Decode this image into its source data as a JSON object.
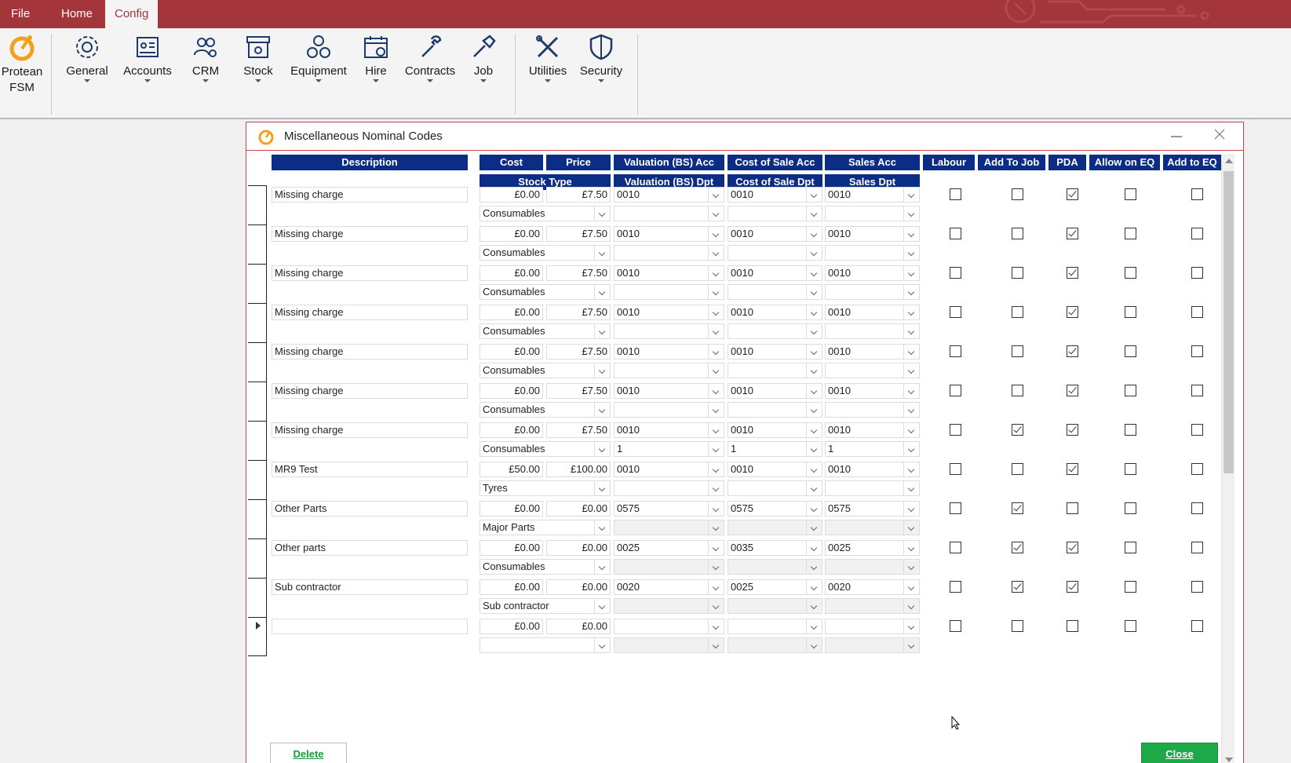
{
  "menu": {
    "tabs": [
      {
        "label": "File"
      },
      {
        "label": "Home"
      },
      {
        "label": "Config"
      }
    ]
  },
  "ribbon": {
    "buttons": [
      {
        "label": "Protean\nFSM",
        "icon": "protean-logo-icon"
      },
      {
        "label": "General",
        "icon": "gear-icon"
      },
      {
        "label": "Accounts",
        "icon": "contact-card-icon"
      },
      {
        "label": "CRM",
        "icon": "users-gear-icon"
      },
      {
        "label": "Stock",
        "icon": "stock-box-icon"
      },
      {
        "label": "Equipment",
        "icon": "gears-icon"
      },
      {
        "label": "Hire",
        "icon": "calendar-icon"
      },
      {
        "label": "Contracts",
        "icon": "wrench-icon"
      },
      {
        "label": "Job",
        "icon": "screwdriver-icon"
      },
      {
        "label": "Utilities",
        "icon": "tools-icon"
      },
      {
        "label": "Security",
        "icon": "shield-icon"
      }
    ]
  },
  "dialog": {
    "title": "Miscellaneous Nominal Codes",
    "headers": {
      "description": "Description",
      "cost": "Cost",
      "price": "Price",
      "valuation_acc": "Valuation (BS) Acc",
      "cost_of_sale_acc": "Cost of Sale Acc",
      "sales_acc": "Sales Acc",
      "labour": "Labour",
      "add_to_job": "Add To Job",
      "pda": "PDA",
      "allow_on_eq": "Allow on EQ",
      "add_to_eq": "Add to EQ",
      "stock_type": "Stock Type",
      "valuation_dpt": "Valuation (BS) Dpt",
      "cost_of_sale_dpt": "Cost of Sale Dpt",
      "sales_dpt": "Sales Dpt"
    },
    "rows": [
      {
        "description": "Missing charge",
        "cost": "£0.00",
        "price": "£7.50",
        "val_acc": "0010",
        "cos_acc": "0010",
        "sales_acc": "0010",
        "stock_type": "Consumables",
        "val_dpt": "",
        "cos_dpt": "",
        "sales_dpt": "",
        "labour": false,
        "add_to_job": false,
        "pda": true,
        "allow_on_eq": false,
        "add_to_eq": false,
        "dpt_disabled": false
      },
      {
        "description": "Missing charge",
        "cost": "£0.00",
        "price": "£7.50",
        "val_acc": "0010",
        "cos_acc": "0010",
        "sales_acc": "0010",
        "stock_type": "Consumables",
        "val_dpt": "",
        "cos_dpt": "",
        "sales_dpt": "",
        "labour": false,
        "add_to_job": false,
        "pda": true,
        "allow_on_eq": false,
        "add_to_eq": false,
        "dpt_disabled": false
      },
      {
        "description": "Missing charge",
        "cost": "£0.00",
        "price": "£7.50",
        "val_acc": "0010",
        "cos_acc": "0010",
        "sales_acc": "0010",
        "stock_type": "Consumables",
        "val_dpt": "",
        "cos_dpt": "",
        "sales_dpt": "",
        "labour": false,
        "add_to_job": false,
        "pda": true,
        "allow_on_eq": false,
        "add_to_eq": false,
        "dpt_disabled": false
      },
      {
        "description": "Missing charge",
        "cost": "£0.00",
        "price": "£7.50",
        "val_acc": "0010",
        "cos_acc": "0010",
        "sales_acc": "0010",
        "stock_type": "Consumables",
        "val_dpt": "",
        "cos_dpt": "",
        "sales_dpt": "",
        "labour": false,
        "add_to_job": false,
        "pda": true,
        "allow_on_eq": false,
        "add_to_eq": false,
        "dpt_disabled": false
      },
      {
        "description": "Missing charge",
        "cost": "£0.00",
        "price": "£7.50",
        "val_acc": "0010",
        "cos_acc": "0010",
        "sales_acc": "0010",
        "stock_type": "Consumables",
        "val_dpt": "",
        "cos_dpt": "",
        "sales_dpt": "",
        "labour": false,
        "add_to_job": false,
        "pda": true,
        "allow_on_eq": false,
        "add_to_eq": false,
        "dpt_disabled": false
      },
      {
        "description": "Missing charge",
        "cost": "£0.00",
        "price": "£7.50",
        "val_acc": "0010",
        "cos_acc": "0010",
        "sales_acc": "0010",
        "stock_type": "Consumables",
        "val_dpt": "",
        "cos_dpt": "",
        "sales_dpt": "",
        "labour": false,
        "add_to_job": false,
        "pda": true,
        "allow_on_eq": false,
        "add_to_eq": false,
        "dpt_disabled": false
      },
      {
        "description": "Missing charge",
        "cost": "£0.00",
        "price": "£7.50",
        "val_acc": "0010",
        "cos_acc": "0010",
        "sales_acc": "0010",
        "stock_type": "Consumables",
        "val_dpt": "1",
        "cos_dpt": "1",
        "sales_dpt": "1",
        "labour": false,
        "add_to_job": true,
        "pda": true,
        "allow_on_eq": false,
        "add_to_eq": false,
        "dpt_disabled": false
      },
      {
        "description": "MR9 Test",
        "cost": "£50.00",
        "price": "£100.00",
        "val_acc": "0010",
        "cos_acc": "0010",
        "sales_acc": "0010",
        "stock_type": "Tyres",
        "val_dpt": "",
        "cos_dpt": "",
        "sales_dpt": "",
        "labour": false,
        "add_to_job": false,
        "pda": true,
        "allow_on_eq": false,
        "add_to_eq": false,
        "dpt_disabled": false
      },
      {
        "description": "Other Parts",
        "cost": "£0.00",
        "price": "£0.00",
        "val_acc": "0575",
        "cos_acc": "0575",
        "sales_acc": "0575",
        "stock_type": "Major Parts",
        "val_dpt": "",
        "cos_dpt": "",
        "sales_dpt": "",
        "labour": false,
        "add_to_job": true,
        "pda": false,
        "allow_on_eq": false,
        "add_to_eq": false,
        "dpt_disabled": true
      },
      {
        "description": "Other parts",
        "cost": "£0.00",
        "price": "£0.00",
        "val_acc": "0025",
        "cos_acc": "0035",
        "sales_acc": "0025",
        "stock_type": "Consumables",
        "val_dpt": "",
        "cos_dpt": "",
        "sales_dpt": "",
        "labour": false,
        "add_to_job": true,
        "pda": true,
        "allow_on_eq": false,
        "add_to_eq": false,
        "dpt_disabled": true
      },
      {
        "description": "Sub contractor",
        "cost": "£0.00",
        "price": "£0.00",
        "val_acc": "0020",
        "cos_acc": "0025",
        "sales_acc": "0020",
        "stock_type": "Sub contractor",
        "val_dpt": "",
        "cos_dpt": "",
        "sales_dpt": "",
        "labour": false,
        "add_to_job": true,
        "pda": true,
        "allow_on_eq": false,
        "add_to_eq": false,
        "dpt_disabled": true
      },
      {
        "description": "",
        "cost": "£0.00",
        "price": "£0.00",
        "val_acc": "",
        "cos_acc": "",
        "sales_acc": "",
        "stock_type": "",
        "val_dpt": "",
        "cos_dpt": "",
        "sales_dpt": "",
        "labour": false,
        "add_to_job": false,
        "pda": false,
        "allow_on_eq": false,
        "add_to_eq": false,
        "dpt_disabled": true,
        "new_row": true
      }
    ],
    "delete_label": "Delete",
    "close_label": "Close"
  },
  "colors": {
    "brand": "#a4353a",
    "header": "#0b2d86",
    "close_button": "#1fa84a",
    "delete_text": "#1a9a3a"
  }
}
